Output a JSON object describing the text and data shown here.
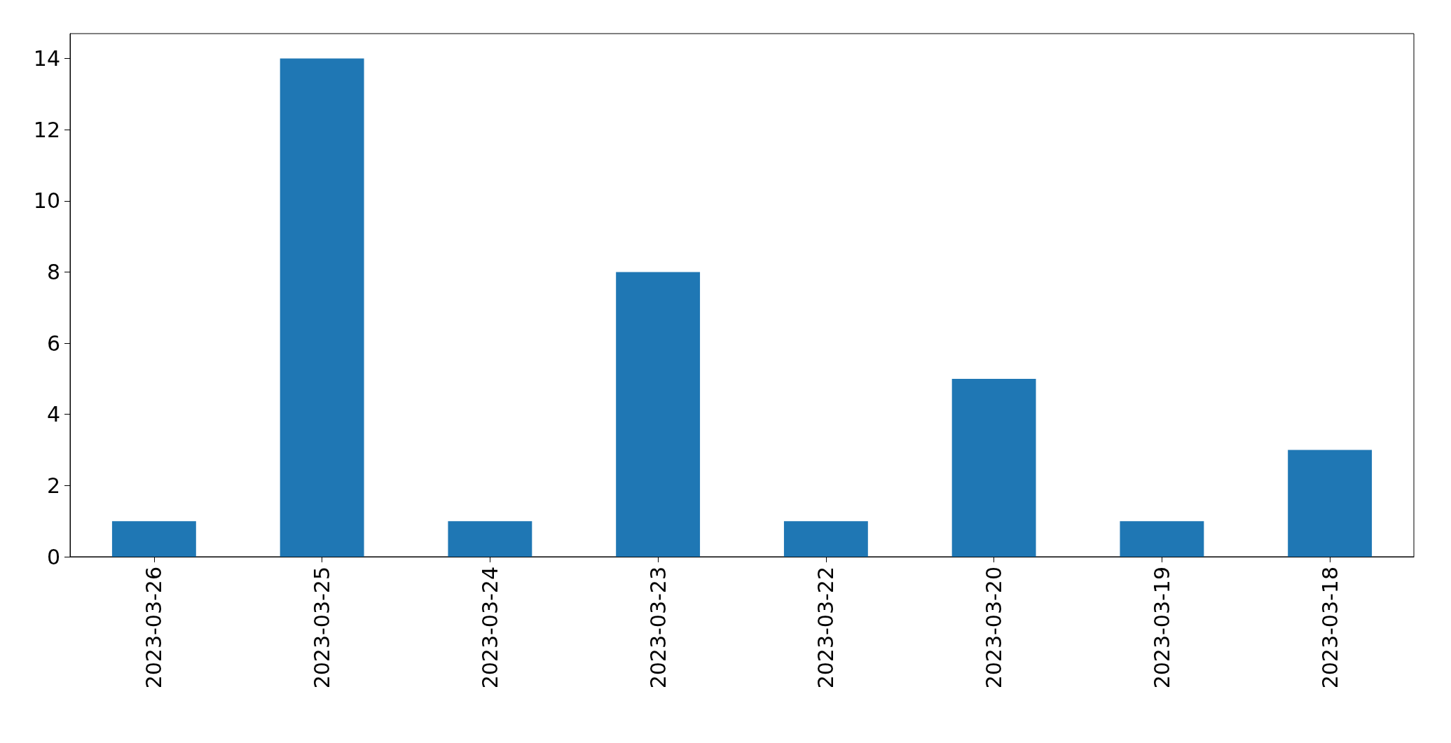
{
  "chart_data": {
    "type": "bar",
    "categories": [
      "2023-03-26",
      "2023-03-25",
      "2023-03-24",
      "2023-03-23",
      "2023-03-22",
      "2023-03-20",
      "2023-03-19",
      "2023-03-18"
    ],
    "values": [
      1,
      14,
      1,
      8,
      1,
      5,
      1,
      3
    ],
    "color": "#1f77b4",
    "ylim": [
      0,
      14.7
    ],
    "yticks": [
      0,
      2,
      4,
      6,
      8,
      10,
      12,
      14
    ],
    "grid": false
  }
}
